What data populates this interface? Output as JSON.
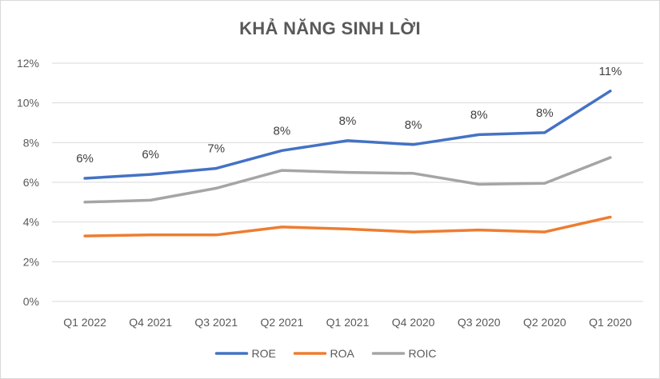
{
  "chart_data": {
    "type": "line",
    "title": "KHẢ NĂNG SINH LỜI",
    "xlabel": "",
    "ylabel": "",
    "categories": [
      "Q1 2022",
      "Q4 2021",
      "Q3 2021",
      "Q2 2021",
      "Q1 2021",
      "Q4 2020",
      "Q3 2020",
      "Q2 2020",
      "Q1 2020"
    ],
    "y_ticks": [
      "0%",
      "2%",
      "4%",
      "6%",
      "8%",
      "10%",
      "12%"
    ],
    "ylim": [
      0,
      12
    ],
    "grid": true,
    "legend_position": "bottom",
    "series": [
      {
        "name": "ROE",
        "color": "#4472C4",
        "values": [
          6.2,
          6.4,
          6.7,
          7.6,
          8.1,
          7.9,
          8.4,
          8.5,
          10.6
        ],
        "data_labels": [
          "6%",
          "6%",
          "7%",
          "8%",
          "8%",
          "8%",
          "8%",
          "8%",
          "11%"
        ]
      },
      {
        "name": "ROA",
        "color": "#ED7D31",
        "values": [
          3.3,
          3.35,
          3.35,
          3.75,
          3.65,
          3.5,
          3.6,
          3.5,
          4.25
        ]
      },
      {
        "name": "ROIC",
        "color": "#A5A5A5",
        "values": [
          5.0,
          5.1,
          5.7,
          6.6,
          6.5,
          6.45,
          5.9,
          5.95,
          7.25
        ]
      }
    ]
  }
}
